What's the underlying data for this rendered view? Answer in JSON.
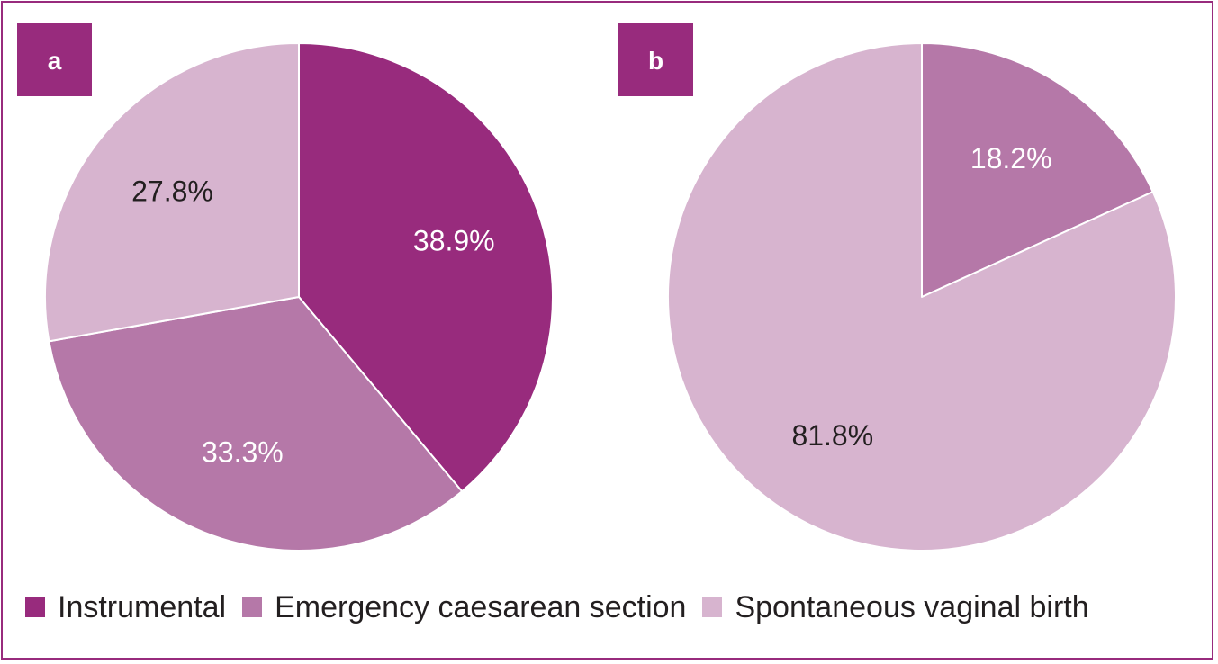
{
  "chart_data": [
    {
      "type": "pie",
      "panel": "a",
      "slices": [
        {
          "label": "Instrumental",
          "value": 38.9,
          "text": "38.9%",
          "color": "#982b7d",
          "text_color": "#ffffff"
        },
        {
          "label": "Emergency caesarean section",
          "value": 33.3,
          "text": "33.3%",
          "color": "#b578a8",
          "text_color": "#ffffff"
        },
        {
          "label": "Spontaneous vaginal birth",
          "value": 27.8,
          "text": "27.8%",
          "color": "#d7b4cf",
          "text_color": "#231f20"
        }
      ]
    },
    {
      "type": "pie",
      "panel": "b",
      "slices": [
        {
          "label": "Emergency caesarean section",
          "value": 18.2,
          "text": "18.2%",
          "color": "#b578a8",
          "text_color": "#ffffff"
        },
        {
          "label": "Spontaneous vaginal birth",
          "value": 81.8,
          "text": "81.8%",
          "color": "#d7b4cf",
          "text_color": "#231f20"
        }
      ]
    }
  ],
  "legend": {
    "position": "bottom",
    "items": [
      {
        "label": "Instrumental",
        "color": "#982b7d"
      },
      {
        "label": "Emergency caesarean section",
        "color": "#b578a8"
      },
      {
        "label": "Spontaneous vaginal birth",
        "color": "#d7b4cf"
      }
    ]
  },
  "colors": {
    "frame": "#982b7d",
    "tag": "#982b7d",
    "divider": "#ffffff"
  }
}
